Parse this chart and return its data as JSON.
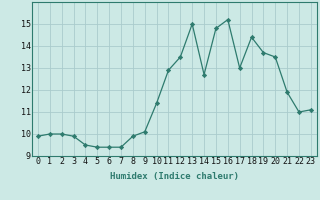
{
  "x": [
    0,
    1,
    2,
    3,
    4,
    5,
    6,
    7,
    8,
    9,
    10,
    11,
    12,
    13,
    14,
    15,
    16,
    17,
    18,
    19,
    20,
    21,
    22,
    23
  ],
  "y": [
    9.9,
    10.0,
    10.0,
    9.9,
    9.5,
    9.4,
    9.4,
    9.4,
    9.9,
    10.1,
    11.4,
    12.9,
    13.5,
    15.0,
    12.7,
    14.8,
    15.2,
    13.0,
    14.4,
    13.7,
    13.5,
    11.9,
    11.0,
    11.1
  ],
  "line_color": "#2e7b6e",
  "marker": "D",
  "marker_size": 2.2,
  "bg_color": "#cce9e5",
  "grid_color": "#aacccc",
  "xlabel": "Humidex (Indice chaleur)",
  "ylim": [
    9,
    16
  ],
  "xlim": [
    -0.5,
    23.5
  ],
  "yticks": [
    9,
    10,
    11,
    12,
    13,
    14,
    15
  ],
  "xticks": [
    0,
    1,
    2,
    3,
    4,
    5,
    6,
    7,
    8,
    9,
    10,
    11,
    12,
    13,
    14,
    15,
    16,
    17,
    18,
    19,
    20,
    21,
    22,
    23
  ],
  "label_fontsize": 6.5,
  "tick_fontsize": 6.0,
  "line_width": 0.9
}
